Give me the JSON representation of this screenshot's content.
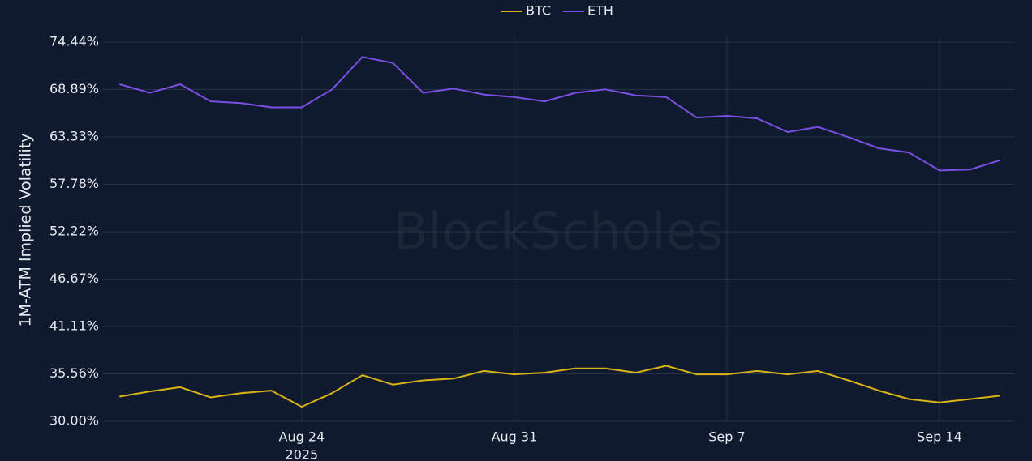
{
  "chart_data": {
    "type": "line",
    "y_label": "1M-ATM Implied Volatility",
    "watermark": "BlockScholes",
    "x": [
      "2025-08-18",
      "2025-08-19",
      "2025-08-20",
      "2025-08-21",
      "2025-08-22",
      "2025-08-23",
      "2025-08-24",
      "2025-08-25",
      "2025-08-26",
      "2025-08-27",
      "2025-08-28",
      "2025-08-29",
      "2025-08-30",
      "2025-08-31",
      "2025-09-01",
      "2025-09-02",
      "2025-09-03",
      "2025-09-04",
      "2025-09-05",
      "2025-09-06",
      "2025-09-07",
      "2025-09-08",
      "2025-09-09",
      "2025-09-10",
      "2025-09-11",
      "2025-09-12",
      "2025-09-13",
      "2025-09-14",
      "2025-09-15",
      "2025-09-16"
    ],
    "series": [
      {
        "name": "BTC",
        "color": "#d9b318",
        "values": [
          32.9,
          33.5,
          34.0,
          32.8,
          33.3,
          33.6,
          31.7,
          33.3,
          35.4,
          34.3,
          34.8,
          35.0,
          35.9,
          35.5,
          35.7,
          36.2,
          36.2,
          35.7,
          36.5,
          35.5,
          35.5,
          35.9,
          35.5,
          35.9,
          34.8,
          33.6,
          32.6,
          32.2,
          32.6,
          33.0
        ]
      },
      {
        "name": "ETH",
        "color": "#7b4fe3",
        "values": [
          69.5,
          68.5,
          69.5,
          67.5,
          67.3,
          66.8,
          66.8,
          68.9,
          72.7,
          72.0,
          68.5,
          69.0,
          68.3,
          68.0,
          67.5,
          68.5,
          68.9,
          68.2,
          68.0,
          65.6,
          65.8,
          65.5,
          63.9,
          64.5,
          63.3,
          62.0,
          61.5,
          59.4,
          59.5,
          60.6
        ]
      }
    ],
    "xlim": [
      "2025-08-17T11:00",
      "2025-09-16T11:00"
    ],
    "xticks": [
      {
        "value": "2025-08-24",
        "label": "Aug 24"
      },
      {
        "value": "2025-08-31",
        "label": "Aug 31"
      },
      {
        "value": "2025-09-07",
        "label": "Sep 7"
      },
      {
        "value": "2025-09-14",
        "label": "Sep 14"
      }
    ],
    "x_sublabel": "2025",
    "ylim": [
      30,
      74.44
    ],
    "yticks": [
      {
        "value": 30,
        "label": "30.00%"
      },
      {
        "value": 35.56,
        "label": "35.56%"
      },
      {
        "value": 41.11,
        "label": "41.11%"
      },
      {
        "value": 46.67,
        "label": "46.67%"
      },
      {
        "value": 52.22,
        "label": "52.22%"
      },
      {
        "value": 57.78,
        "label": "57.78%"
      },
      {
        "value": 63.33,
        "label": "63.33%"
      },
      {
        "value": 68.89,
        "label": "68.89%"
      },
      {
        "value": 74.44,
        "label": "74.44%"
      }
    ],
    "grid": true,
    "legend": "top"
  }
}
